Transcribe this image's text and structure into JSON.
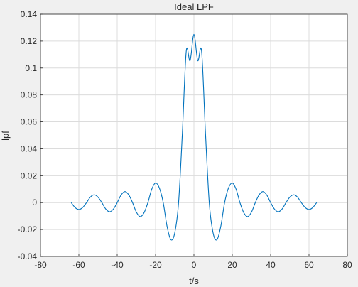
{
  "chart_data": {
    "type": "line",
    "title": "Ideal LPF",
    "xlabel": "t/s",
    "ylabel": "lpf",
    "xlim": [
      -80,
      80
    ],
    "ylim": [
      -0.04,
      0.14
    ],
    "xticks": [
      -80,
      -60,
      -40,
      -20,
      0,
      20,
      40,
      60,
      80
    ],
    "yticks": [
      -0.04,
      -0.02,
      0,
      0.02,
      0.04,
      0.06,
      0.08,
      0.1,
      0.12,
      0.14
    ],
    "xtick_labels": [
      "-80",
      "-60",
      "-40",
      "-20",
      "0",
      "20",
      "40",
      "60",
      "80"
    ],
    "ytick_labels": [
      "-0.04",
      "-0.02",
      "0",
      "0.02",
      "0.04",
      "0.06",
      "0.08",
      "0.1",
      "0.12",
      "0.14"
    ],
    "grid": true,
    "background": "#f0f0f0",
    "plot_background": "#ffffff",
    "series": [
      {
        "color": "#0072bd",
        "x": [
          -64,
          -62,
          -60,
          -58,
          -56,
          -54,
          -52,
          -50,
          -48,
          -46,
          -44,
          -42,
          -40,
          -38,
          -36,
          -34,
          -32,
          -30,
          -28,
          -26,
          -24,
          -22,
          -20,
          -18,
          -16,
          -14,
          -12,
          -10,
          -8,
          -6,
          -4,
          -2,
          0,
          2,
          4,
          6,
          8,
          10,
          12,
          14,
          16,
          18,
          20,
          22,
          24,
          26,
          28,
          30,
          32,
          34,
          36,
          38,
          40,
          42,
          44,
          46,
          48,
          50,
          52,
          54,
          56,
          58,
          60,
          62,
          64
        ],
        "y": [
          0,
          -0.0036,
          -0.0051,
          -0.0036,
          0,
          0.0041,
          0.0058,
          0.0041,
          0,
          -0.0047,
          -0.0068,
          -0.0048,
          0,
          0.0056,
          0.0082,
          0.0058,
          0,
          -0.0071,
          -0.0104,
          -0.0075,
          0,
          0.0099,
          0.0146,
          0.0108,
          0,
          -0.0177,
          -0.0276,
          -0.0225,
          0,
          0.0525,
          0.1125,
          0.1055,
          0.125,
          0.1055,
          0.1125,
          0.0525,
          0,
          -0.0225,
          -0.0276,
          -0.0177,
          0,
          0.0108,
          0.0146,
          0.0099,
          0,
          -0.0075,
          -0.0104,
          -0.0071,
          0,
          0.0058,
          0.0082,
          0.0056,
          0,
          -0.0048,
          -0.0068,
          -0.0047,
          0,
          0.0041,
          0.0058,
          0.0041,
          0,
          -0.0036,
          -0.0051,
          -0.0036,
          0
        ]
      }
    ]
  }
}
